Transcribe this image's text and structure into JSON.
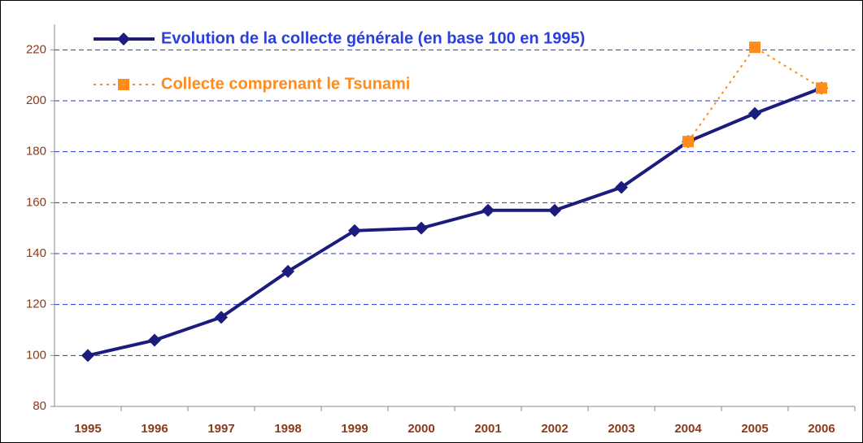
{
  "chart_data": {
    "type": "line",
    "categories": [
      "1995",
      "1996",
      "1997",
      "1998",
      "1999",
      "2000",
      "2001",
      "2002",
      "2003",
      "2004",
      "2005",
      "2006"
    ],
    "series": [
      {
        "name": "Evolution de la collecte générale (en base 100 en 1995)",
        "color": "#1c1c7e",
        "marker": "diamond",
        "dashed": false,
        "values": [
          100,
          106,
          115,
          133,
          149,
          150,
          157,
          157,
          166,
          184,
          195,
          205
        ]
      },
      {
        "name": "Collecte comprenant le Tsunami",
        "color": "#ff8c1a",
        "marker": "square",
        "dashed": true,
        "values": [
          null,
          null,
          null,
          null,
          null,
          null,
          null,
          null,
          null,
          184,
          221,
          205
        ]
      }
    ],
    "ylim": [
      80,
      230
    ],
    "yticks": [
      80,
      100,
      120,
      140,
      160,
      180,
      200,
      220
    ],
    "grid": true,
    "legend": "top-left"
  }
}
